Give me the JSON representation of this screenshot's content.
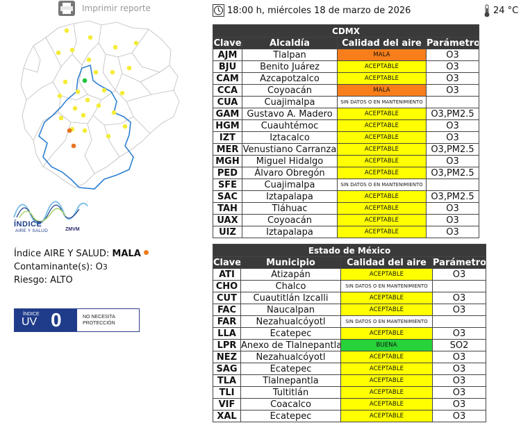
{
  "print_label": "Imprimir reporte",
  "datetime": "18:00 h, miércoles 18 de marzo de 2026",
  "temperature": "24 °C",
  "colors": {
    "mala": "#f77e1b",
    "aceptable": "#ffff00",
    "buena": "#28d23a",
    "nodata": "#ffffff",
    "header_bg": "#3a3a3a"
  },
  "logo": {
    "line1": "ÍNDICE",
    "line2": "AIRE Y SALUD",
    "line3": "ZMVM"
  },
  "summary": {
    "indice_label": "Índice AIRE Y SALUD:",
    "indice_value": "MALA",
    "contaminante_label": "Contaminante(s):",
    "contaminante_main": "O",
    "contaminante_sub": "3",
    "riesgo_label": "Riesgo:",
    "riesgo_value": "ALTO"
  },
  "uv": {
    "label_small": "ÍNDICE",
    "label_big": "UV",
    "value": "0",
    "message_line1": "NO NECESITA",
    "message_line2": "PROTECCIÓN"
  },
  "cdmx": {
    "title": "CDMX",
    "headers": [
      "Clave",
      "Alcaldía",
      "Calidad del aire",
      "Parámetro"
    ],
    "rows": [
      {
        "clave": "AJM",
        "name": "Tlalpan",
        "quality": "MALA",
        "level": "mala",
        "param": "O3"
      },
      {
        "clave": "BJU",
        "name": "Benito Juárez",
        "quality": "ACEPTABLE",
        "level": "aceptable",
        "param": "O3"
      },
      {
        "clave": "CAM",
        "name": "Azcapotzalco",
        "quality": "ACEPTABLE",
        "level": "aceptable",
        "param": "O3"
      },
      {
        "clave": "CCA",
        "name": "Coyoacán",
        "quality": "MALA",
        "level": "mala",
        "param": "O3"
      },
      {
        "clave": "CUA",
        "name": "Cuajimalpa",
        "quality": "SIN DATOS O EN MANTENIMIENTO",
        "level": "nodata",
        "param": ""
      },
      {
        "clave": "GAM",
        "name": "Gustavo A. Madero",
        "quality": "ACEPTABLE",
        "level": "aceptable",
        "param": "O3,PM2.5"
      },
      {
        "clave": "HGM",
        "name": "Cuauhtémoc",
        "quality": "ACEPTABLE",
        "level": "aceptable",
        "param": "O3"
      },
      {
        "clave": "IZT",
        "name": "Iztacalco",
        "quality": "ACEPTABLE",
        "level": "aceptable",
        "param": "O3"
      },
      {
        "clave": "MER",
        "name": "Venustiano Carranza",
        "quality": "ACEPTABLE",
        "level": "aceptable",
        "param": "O3,PM2.5"
      },
      {
        "clave": "MGH",
        "name": "Miguel Hidalgo",
        "quality": "ACEPTABLE",
        "level": "aceptable",
        "param": "O3"
      },
      {
        "clave": "PED",
        "name": "Álvaro Obregón",
        "quality": "ACEPTABLE",
        "level": "aceptable",
        "param": "O3,PM2.5"
      },
      {
        "clave": "SFE",
        "name": "Cuajimalpa",
        "quality": "SIN DATOS O EN MANTENIMIENTO",
        "level": "nodata",
        "param": ""
      },
      {
        "clave": "SAC",
        "name": "Iztapalapa",
        "quality": "ACEPTABLE",
        "level": "aceptable",
        "param": "O3,PM2.5"
      },
      {
        "clave": "TAH",
        "name": "Tláhuac",
        "quality": "ACEPTABLE",
        "level": "aceptable",
        "param": "O3"
      },
      {
        "clave": "UAX",
        "name": "Coyoacán",
        "quality": "ACEPTABLE",
        "level": "aceptable",
        "param": "O3"
      },
      {
        "clave": "UIZ",
        "name": "Iztapalapa",
        "quality": "ACEPTABLE",
        "level": "aceptable",
        "param": "O3"
      }
    ]
  },
  "edomex": {
    "title": "Estado de México",
    "headers": [
      "Clave",
      "Municipio",
      "Calidad del aire",
      "Parámetro"
    ],
    "rows": [
      {
        "clave": "ATI",
        "name": "Atizapán",
        "quality": "ACEPTABLE",
        "level": "aceptable",
        "param": "O3"
      },
      {
        "clave": "CHO",
        "name": "Chalco",
        "quality": "SIN DATOS O EN MANTENIMIENTO",
        "level": "nodata",
        "param": ""
      },
      {
        "clave": "CUT",
        "name": "Cuautitlán Izcalli",
        "quality": "ACEPTABLE",
        "level": "aceptable",
        "param": "O3"
      },
      {
        "clave": "FAC",
        "name": "Naucalpan",
        "quality": "ACEPTABLE",
        "level": "aceptable",
        "param": "O3"
      },
      {
        "clave": "FAR",
        "name": "Nezahualcóyotl",
        "quality": "SIN DATOS O EN MANTENIMIENTO",
        "level": "nodata",
        "param": ""
      },
      {
        "clave": "LLA",
        "name": "Ecatepec",
        "quality": "ACEPTABLE",
        "level": "aceptable",
        "param": "O3"
      },
      {
        "clave": "LPR",
        "name": "Anexo de Tlalnepantla",
        "quality": "BUENA",
        "level": "buena",
        "param": "SO2"
      },
      {
        "clave": "NEZ",
        "name": "Nezahualcóyotl",
        "quality": "ACEPTABLE",
        "level": "aceptable",
        "param": "O3"
      },
      {
        "clave": "SAG",
        "name": "Ecatepec",
        "quality": "ACEPTABLE",
        "level": "aceptable",
        "param": "O3"
      },
      {
        "clave": "TLA",
        "name": "Tlalnepantla",
        "quality": "ACEPTABLE",
        "level": "aceptable",
        "param": "O3"
      },
      {
        "clave": "TLI",
        "name": "Tultitlán",
        "quality": "ACEPTABLE",
        "level": "aceptable",
        "param": "O3"
      },
      {
        "clave": "VIF",
        "name": "Coacalco",
        "quality": "ACEPTABLE",
        "level": "aceptable",
        "param": "O3"
      },
      {
        "clave": "XAL",
        "name": "Ecatepec",
        "quality": "ACEPTABLE",
        "level": "aceptable",
        "param": "O3"
      }
    ]
  },
  "map_stations": [
    {
      "level": "aceptable"
    },
    {
      "level": "aceptable"
    },
    {
      "level": "aceptable"
    },
    {
      "level": "aceptable"
    },
    {
      "level": "aceptable"
    },
    {
      "level": "aceptable"
    },
    {
      "level": "aceptable"
    },
    {
      "level": "aceptable"
    },
    {
      "level": "aceptable"
    },
    {
      "level": "buena"
    },
    {
      "level": "aceptable"
    },
    {
      "level": "aceptable"
    },
    {
      "level": "aceptable"
    },
    {
      "level": "aceptable"
    },
    {
      "level": "aceptable"
    },
    {
      "level": "aceptable"
    },
    {
      "level": "aceptable"
    },
    {
      "level": "aceptable"
    },
    {
      "level": "aceptable"
    },
    {
      "level": "aceptable"
    },
    {
      "level": "aceptable"
    },
    {
      "level": "aceptable"
    },
    {
      "level": "aceptable"
    },
    {
      "level": "mala"
    },
    {
      "level": "aceptable"
    },
    {
      "level": "mala"
    },
    {
      "level": "aceptable"
    },
    {
      "level": "aceptable"
    }
  ]
}
